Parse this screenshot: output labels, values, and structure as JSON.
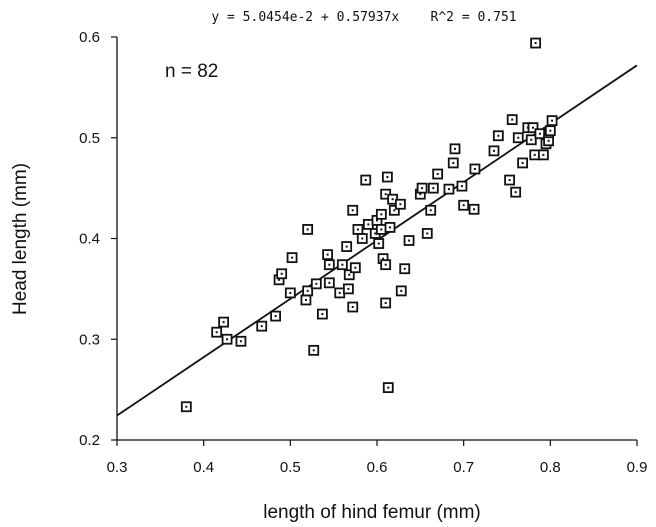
{
  "chart_data": {
    "type": "scatter",
    "title": "y = 5.0454e-2 + 0.57937x    R^2 = 0.751",
    "annotation": "n = 82",
    "xlabel": "length of hind femur (mm)",
    "ylabel": "Head length (mm)",
    "xlim": [
      0.3,
      0.9
    ],
    "ylim": [
      0.2,
      0.6
    ],
    "x_ticks": [
      "0.3",
      "0.4",
      "0.5",
      "0.6",
      "0.7",
      "0.8",
      "0.9"
    ],
    "y_ticks": [
      "0.2",
      "0.3",
      "0.4",
      "0.5",
      "0.6"
    ],
    "grid": false,
    "marker": "square",
    "regression": {
      "intercept": 0.050454,
      "slope": 0.57937,
      "r2": 0.751
    },
    "points": [
      [
        0.38,
        0.233
      ],
      [
        0.415,
        0.307
      ],
      [
        0.423,
        0.317
      ],
      [
        0.427,
        0.3
      ],
      [
        0.443,
        0.298
      ],
      [
        0.467,
        0.313
      ],
      [
        0.483,
        0.323
      ],
      [
        0.487,
        0.359
      ],
      [
        0.49,
        0.365
      ],
      [
        0.5,
        0.346
      ],
      [
        0.502,
        0.381
      ],
      [
        0.518,
        0.339
      ],
      [
        0.52,
        0.348
      ],
      [
        0.52,
        0.409
      ],
      [
        0.527,
        0.289
      ],
      [
        0.53,
        0.355
      ],
      [
        0.537,
        0.325
      ],
      [
        0.543,
        0.384
      ],
      [
        0.545,
        0.374
      ],
      [
        0.545,
        0.356
      ],
      [
        0.557,
        0.346
      ],
      [
        0.56,
        0.374
      ],
      [
        0.565,
        0.392
      ],
      [
        0.567,
        0.35
      ],
      [
        0.568,
        0.364
      ],
      [
        0.572,
        0.332
      ],
      [
        0.572,
        0.428
      ],
      [
        0.575,
        0.371
      ],
      [
        0.578,
        0.409
      ],
      [
        0.583,
        0.4
      ],
      [
        0.587,
        0.458
      ],
      [
        0.59,
        0.414
      ],
      [
        0.598,
        0.405
      ],
      [
        0.6,
        0.418
      ],
      [
        0.602,
        0.395
      ],
      [
        0.605,
        0.424
      ],
      [
        0.605,
        0.409
      ],
      [
        0.607,
        0.38
      ],
      [
        0.61,
        0.336
      ],
      [
        0.61,
        0.374
      ],
      [
        0.61,
        0.444
      ],
      [
        0.612,
        0.461
      ],
      [
        0.613,
        0.252
      ],
      [
        0.615,
        0.411
      ],
      [
        0.618,
        0.439
      ],
      [
        0.62,
        0.428
      ],
      [
        0.627,
        0.434
      ],
      [
        0.628,
        0.348
      ],
      [
        0.632,
        0.37
      ],
      [
        0.637,
        0.398
      ],
      [
        0.65,
        0.444
      ],
      [
        0.652,
        0.45
      ],
      [
        0.658,
        0.405
      ],
      [
        0.662,
        0.428
      ],
      [
        0.665,
        0.45
      ],
      [
        0.683,
        0.449
      ],
      [
        0.688,
        0.475
      ],
      [
        0.69,
        0.489
      ],
      [
        0.698,
        0.452
      ],
      [
        0.7,
        0.433
      ],
      [
        0.712,
        0.429
      ],
      [
        0.713,
        0.469
      ],
      [
        0.74,
        0.502
      ],
      [
        0.753,
        0.458
      ],
      [
        0.756,
        0.518
      ],
      [
        0.76,
        0.446
      ],
      [
        0.763,
        0.5
      ],
      [
        0.768,
        0.475
      ],
      [
        0.774,
        0.51
      ],
      [
        0.778,
        0.498
      ],
      [
        0.78,
        0.51
      ],
      [
        0.782,
        0.483
      ],
      [
        0.783,
        0.594
      ],
      [
        0.788,
        0.504
      ],
      [
        0.792,
        0.483
      ],
      [
        0.795,
        0.494
      ],
      [
        0.798,
        0.497
      ],
      [
        0.798,
        0.505
      ],
      [
        0.8,
        0.507
      ],
      [
        0.802,
        0.517
      ],
      [
        0.735,
        0.487
      ],
      [
        0.67,
        0.464
      ]
    ]
  }
}
